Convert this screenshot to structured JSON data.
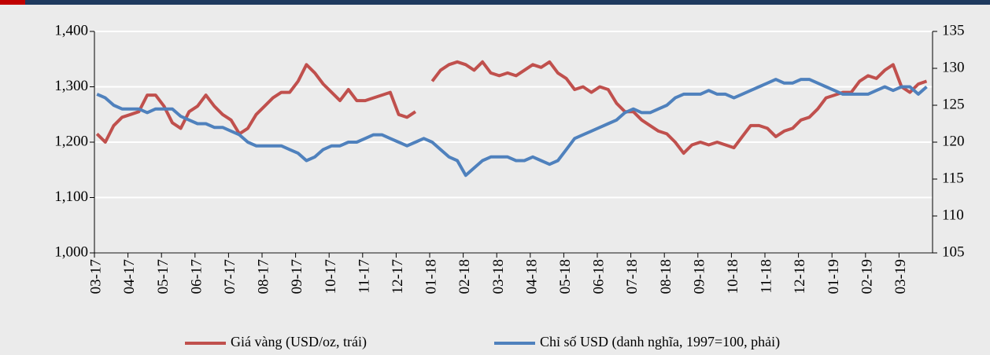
{
  "chart_data": {
    "type": "line",
    "categories": [
      "03-17",
      null,
      null,
      null,
      "04-17",
      null,
      null,
      null,
      "05-17",
      null,
      null,
      null,
      "06-17",
      null,
      null,
      null,
      "07-17",
      null,
      null,
      null,
      "08-17",
      null,
      null,
      null,
      "09-17",
      null,
      null,
      null,
      "10-17",
      null,
      null,
      null,
      "11-17",
      null,
      null,
      null,
      "12-17",
      null,
      null,
      null,
      "01-18",
      null,
      null,
      null,
      "02-18",
      null,
      null,
      null,
      "03-18",
      null,
      null,
      null,
      "04-18",
      null,
      null,
      null,
      "05-18",
      null,
      null,
      null,
      "06-18",
      null,
      null,
      null,
      "07-18",
      null,
      null,
      null,
      "08-18",
      null,
      null,
      null,
      "09-18",
      null,
      null,
      null,
      "10-18",
      null,
      null,
      null,
      "11-18",
      null,
      null,
      null,
      "12-18",
      null,
      null,
      null,
      "01-19",
      null,
      null,
      null,
      "02-19",
      null,
      null,
      null,
      "03-19",
      null,
      null,
      null
    ],
    "series": [
      {
        "name": "Giá vàng (USD/oz, trái)",
        "color": "#c0504d",
        "axis": "y",
        "values": [
          1215,
          1200,
          1230,
          1245,
          1250,
          1255,
          1285,
          1285,
          1265,
          1235,
          1225,
          1255,
          1265,
          1285,
          1265,
          1250,
          1240,
          1215,
          1225,
          1250,
          1265,
          1280,
          1290,
          1290,
          1310,
          1340,
          1325,
          1305,
          1290,
          1275,
          1295,
          1275,
          1275,
          1280,
          1285,
          1290,
          1250,
          1245,
          1255,
          null,
          1310,
          1330,
          1340,
          1345,
          1340,
          1330,
          1345,
          1325,
          1320,
          1325,
          1320,
          1330,
          1340,
          1335,
          1345,
          1325,
          1315,
          1295,
          1300,
          1290,
          1300,
          1295,
          1270,
          1255,
          1255,
          1240,
          1230,
          1220,
          1215,
          1200,
          1180,
          1195,
          1200,
          1195,
          1200,
          1195,
          1190,
          1210,
          1230,
          1230,
          1225,
          1210,
          1220,
          1225,
          1240,
          1245,
          1260,
          1280,
          1285,
          1290,
          1290,
          1310,
          1320,
          1315,
          1330,
          1340,
          1300,
          1290,
          1305,
          1310
        ]
      },
      {
        "name": "Chỉ số USD (danh nghĩa, 1997=100, phải)",
        "color": "#4f81bd",
        "axis": "y2",
        "values": [
          126.5,
          126,
          125,
          124.5,
          124.5,
          124.5,
          124,
          124.5,
          124.5,
          124.5,
          123.5,
          123,
          122.5,
          122.5,
          122,
          122,
          121.5,
          121,
          120,
          119.5,
          119.5,
          119.5,
          119.5,
          119,
          118.5,
          117.5,
          118,
          119,
          119.5,
          119.5,
          120,
          120,
          120.5,
          121,
          121,
          120.5,
          120,
          119.5,
          120,
          120.5,
          120,
          119,
          118,
          117.5,
          115.5,
          116.5,
          117.5,
          118,
          118,
          118,
          117.5,
          117.5,
          118,
          117.5,
          117,
          117.5,
          119,
          120.5,
          121,
          121.5,
          122,
          122.5,
          123,
          124,
          124.5,
          124,
          124,
          124.5,
          125,
          126,
          126.5,
          126.5,
          126.5,
          127,
          126.5,
          126.5,
          126,
          126.5,
          127,
          127.5,
          128,
          128.5,
          128,
          128,
          128.5,
          128.5,
          128,
          127.5,
          127,
          126.5,
          126.5,
          126.5,
          126.5,
          127,
          127.5,
          127,
          127.5,
          127.5,
          126.5,
          127.5
        ]
      }
    ],
    "ylim": [
      1000,
      1400
    ],
    "yticks": [
      {
        "value": 1000,
        "label": "1,000"
      },
      {
        "value": 1100,
        "label": "1,100"
      },
      {
        "value": 1200,
        "label": "1,200"
      },
      {
        "value": 1300,
        "label": "1,300"
      },
      {
        "value": 1400,
        "label": "1,400"
      }
    ],
    "y2lim": [
      105,
      135
    ],
    "y2ticks": [
      105,
      110,
      115,
      120,
      125,
      130,
      135
    ],
    "grid": true,
    "legend": "bottom"
  }
}
